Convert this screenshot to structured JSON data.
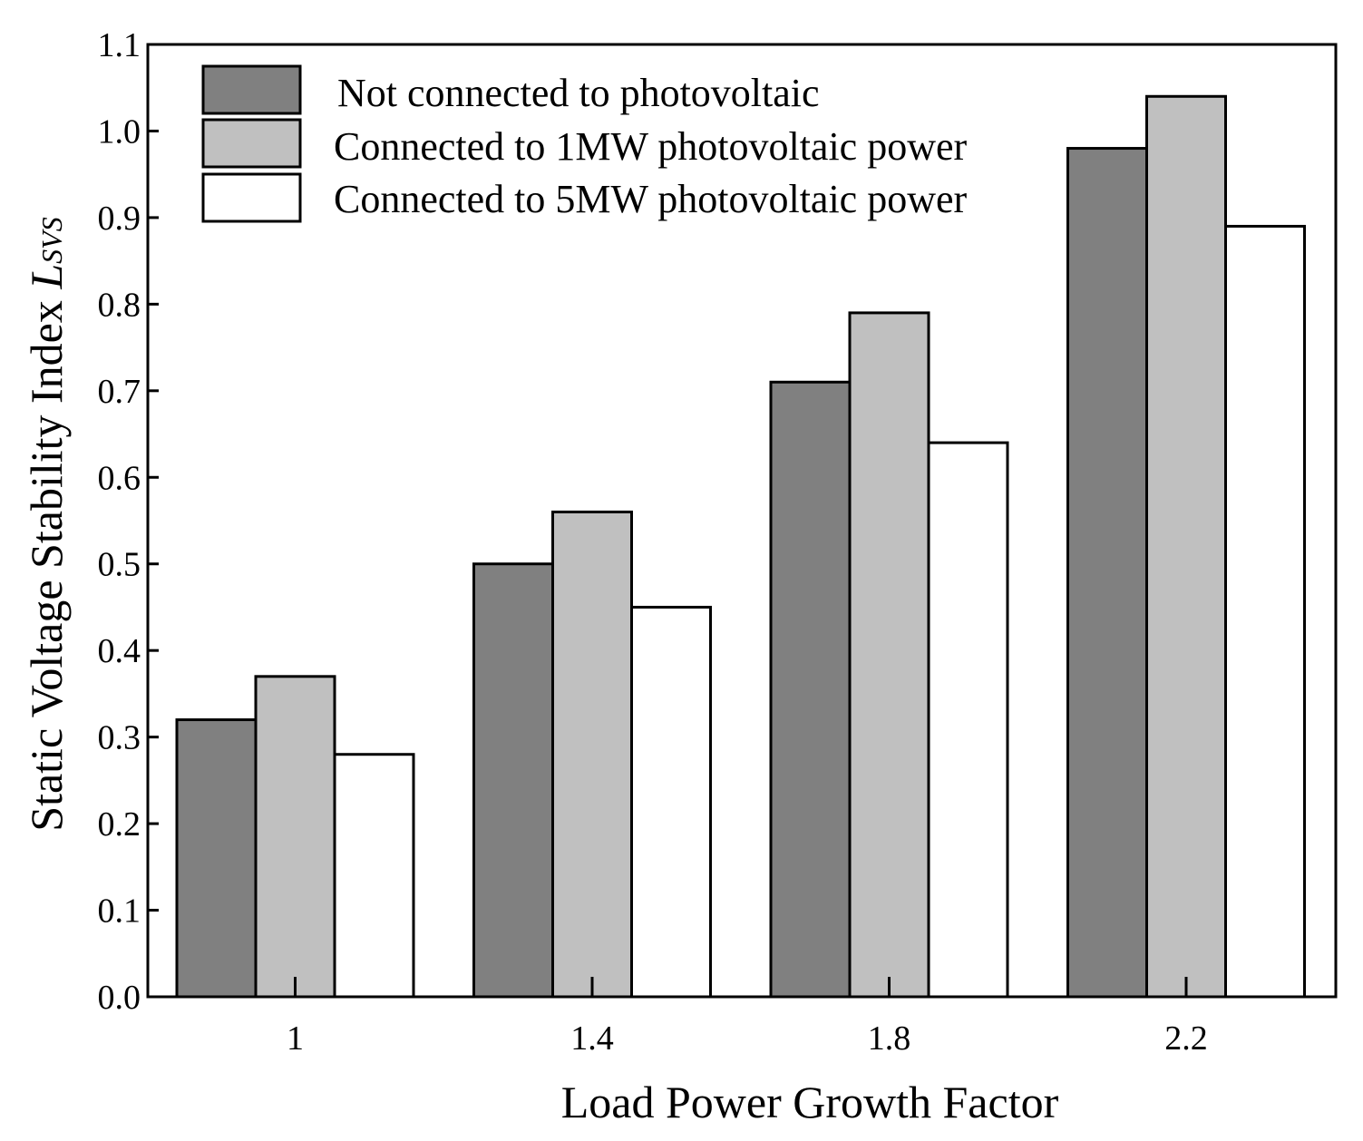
{
  "chart_data": {
    "type": "bar",
    "categories": [
      "1",
      "1.4",
      "1.8",
      "2.2"
    ],
    "series": [
      {
        "name": "Not connected to photovoltaic",
        "color": "#808080",
        "values": [
          0.32,
          0.5,
          0.71,
          0.98
        ]
      },
      {
        "name": "Connected to 1MW photovoltaic power",
        "color": "#c0c0c0",
        "values": [
          0.37,
          0.56,
          0.79,
          1.04
        ]
      },
      {
        "name": "Connected to 5MW photovoltaic power",
        "color": "#ffffff",
        "values": [
          0.28,
          0.45,
          0.64,
          0.89
        ]
      }
    ],
    "xlabel": "Load Power Growth Factor",
    "ylabel": "Static Voltage Stability Index",
    "ylabel_symbol": "L",
    "ylabel_subscript": "SVS",
    "ylim": [
      0,
      1.1
    ],
    "yticks": [
      "0.0",
      "0.1",
      "0.2",
      "0.3",
      "0.4",
      "0.5",
      "0.6",
      "0.7",
      "0.8",
      "0.9",
      "1.0",
      "1.1"
    ],
    "legend_position": "top-left",
    "grid": false
  }
}
